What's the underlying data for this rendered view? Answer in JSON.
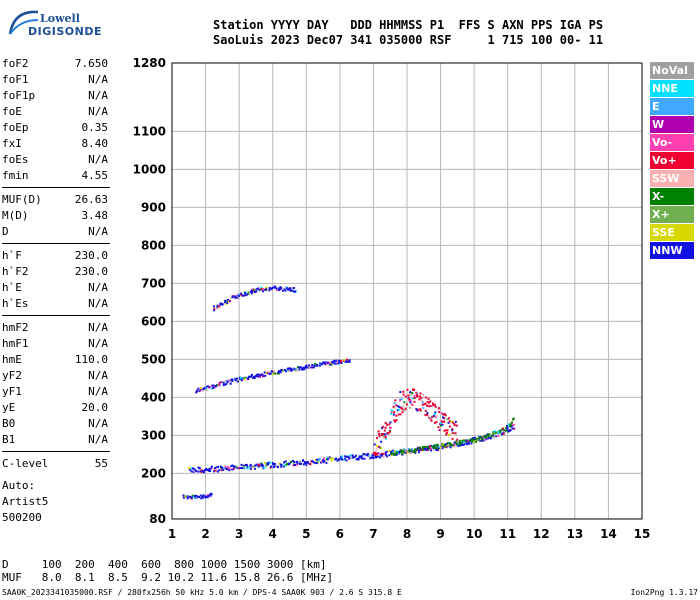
{
  "header": {
    "line1": "Station YYYY DAY   DDD HHMMSS P1  FFS S AXN PPS IGA PS",
    "line2": "SaoLuis 2023 Dec07 341 035000 RSF     1 715 100 00- 11"
  },
  "logo": {
    "brand_top": "Lowell",
    "brand_bottom": "DIGISONDE"
  },
  "params_group1": [
    {
      "k": "foF2",
      "v": "7.650"
    },
    {
      "k": "foF1",
      "v": "N/A"
    },
    {
      "k": "foF1p",
      "v": "N/A"
    },
    {
      "k": "foE",
      "v": "N/A"
    },
    {
      "k": "foEp",
      "v": "0.35"
    },
    {
      "k": "fxI",
      "v": "8.40"
    },
    {
      "k": "foEs",
      "v": "N/A"
    },
    {
      "k": "fmin",
      "v": "4.55"
    }
  ],
  "params_group2": [
    {
      "k": "MUF(D)",
      "v": "26.63"
    },
    {
      "k": "M(D)",
      "v": "3.48"
    },
    {
      "k": "D",
      "v": "N/A"
    }
  ],
  "params_group3": [
    {
      "k": "h`F",
      "v": "230.0"
    },
    {
      "k": "h`F2",
      "v": "230.0"
    },
    {
      "k": "h`E",
      "v": "N/A"
    },
    {
      "k": "h`Es",
      "v": "N/A"
    }
  ],
  "params_group4": [
    {
      "k": "hmF2",
      "v": "N/A"
    },
    {
      "k": "hmF1",
      "v": "N/A"
    },
    {
      "k": "hmE",
      "v": "110.0"
    },
    {
      "k": "yF2",
      "v": "N/A"
    },
    {
      "k": "yF1",
      "v": "N/A"
    },
    {
      "k": "yE",
      "v": "20.0"
    },
    {
      "k": "B0",
      "v": "N/A"
    },
    {
      "k": "B1",
      "v": "N/A"
    }
  ],
  "params_group5": [
    {
      "k": "C-level",
      "v": "55"
    }
  ],
  "auto": [
    "Auto:",
    "Artist5",
    "500200"
  ],
  "legend": [
    {
      "label": "NoVal",
      "color": "#a0a0a0"
    },
    {
      "label": "NNE",
      "color": "#00e0ff"
    },
    {
      "label": "E",
      "color": "#40a8ff"
    },
    {
      "label": "W",
      "color": "#b000b0"
    },
    {
      "label": "Vo-",
      "color": "#ff40b0"
    },
    {
      "label": "Vo+",
      "color": "#f00030"
    },
    {
      "label": "SSW",
      "color": "#f8b0b0"
    },
    {
      "label": "X-",
      "color": "#008000"
    },
    {
      "label": "X+",
      "color": "#70b050"
    },
    {
      "label": "SSE",
      "color": "#d8d800"
    },
    {
      "label": "NNW",
      "color": "#1010e0"
    }
  ],
  "dmuf": {
    "d_line": "D     100  200  400  600  800 1000 1500 3000 [km]",
    "muf_line": "MUF   8.0  8.1  8.5  9.2 10.2 11.6 15.8 26.6 [MHz]"
  },
  "footer": {
    "left": "SAA0K_2023341035000.RSF / 280fx256h 50 kHz 5.0 km / DPS-4 SAA0K 903 / 2.6 S 315.8 E",
    "right": "Ion2Png 1.3.17"
  },
  "chart_data": {
    "type": "scatter",
    "title": "",
    "xlabel": "",
    "ylabel": "",
    "xlim": [
      1,
      15
    ],
    "ylim": [
      80,
      1280
    ],
    "x_ticks": [
      1,
      2,
      3,
      4,
      5,
      6,
      7,
      8,
      9,
      10,
      11,
      12,
      13,
      14,
      15
    ],
    "y_ticks": [
      80,
      200,
      300,
      400,
      500,
      600,
      700,
      800,
      900,
      1000,
      1100,
      1280
    ],
    "grid": true,
    "series": [
      {
        "color_key": "NNW",
        "trace": [
          [
            1.5,
            210
          ],
          [
            3,
            218
          ],
          [
            5,
            232
          ],
          [
            7,
            250
          ],
          [
            9,
            272
          ],
          [
            10,
            290
          ],
          [
            10.8,
            310
          ],
          [
            11.2,
            330
          ]
        ]
      },
      {
        "color_key": "X-",
        "trace": [
          [
            7.5,
            255
          ],
          [
            9,
            275
          ],
          [
            10,
            290
          ],
          [
            10.9,
            318
          ],
          [
            11.2,
            350
          ]
        ]
      },
      {
        "color_key": "Vo+",
        "trace": [
          [
            7,
            260
          ],
          [
            7.4,
            330
          ],
          [
            7.8,
            390
          ],
          [
            8.2,
            400
          ],
          [
            8.5,
            380
          ],
          [
            9,
            340
          ],
          [
            9.5,
            305
          ]
        ]
      },
      {
        "color_key": "NNW",
        "trace": [
          [
            1.7,
            420
          ],
          [
            2.5,
            440
          ],
          [
            3.5,
            460
          ],
          [
            4.5,
            475
          ],
          [
            5.5,
            490
          ],
          [
            6.3,
            500
          ]
        ]
      },
      {
        "color_key": "NNW",
        "trace": [
          [
            2.2,
            635
          ],
          [
            2.8,
            665
          ],
          [
            3.5,
            685
          ],
          [
            4.0,
            690
          ],
          [
            4.7,
            685
          ]
        ]
      },
      {
        "color_key": "NNW",
        "trace": [
          [
            1.3,
            140
          ],
          [
            1.7,
            140
          ],
          [
            2.2,
            145
          ]
        ]
      }
    ]
  }
}
